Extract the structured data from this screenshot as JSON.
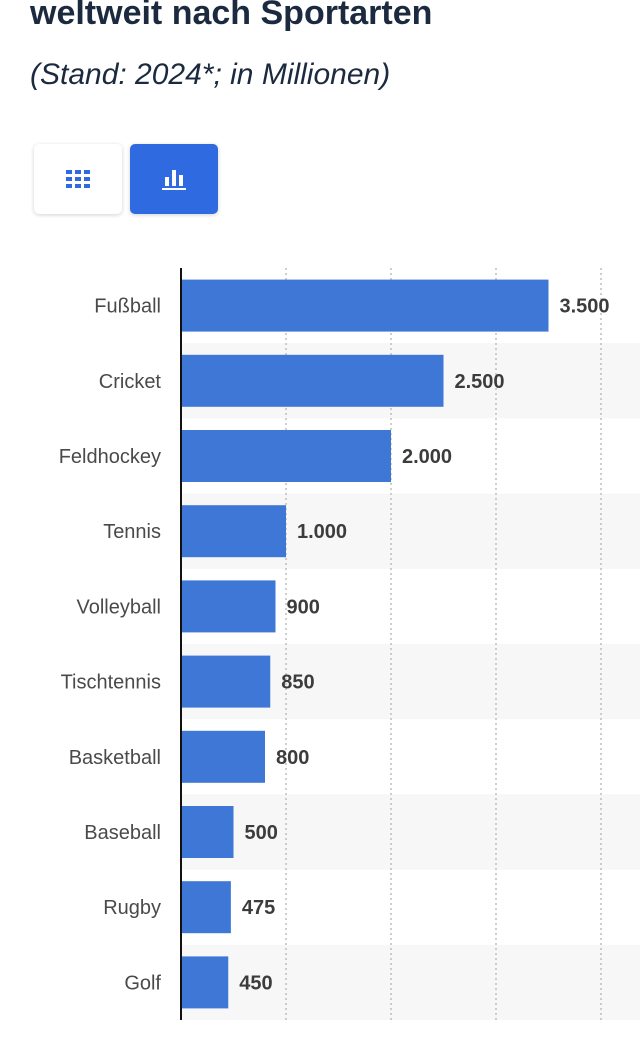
{
  "header": {
    "title": "weltweit nach Sportarten",
    "subtitle": "(Stand: 2024*; in Millionen)"
  },
  "view_toggle": {
    "table_icon": "grid-icon",
    "chart_icon": "bar-chart-icon",
    "active": "chart",
    "active_color": "#2f6ae0"
  },
  "chart_data": {
    "type": "bar",
    "orientation": "horizontal",
    "categories": [
      "Fußball",
      "Cricket",
      "Feldhockey",
      "Tennis",
      "Volleyball",
      "Tischtennis",
      "Basketball",
      "Baseball",
      "Rugby",
      "Golf"
    ],
    "values": [
      3500,
      2500,
      2000,
      1000,
      900,
      850,
      800,
      500,
      475,
      450
    ],
    "value_labels": [
      "3.500",
      "2.500",
      "2.000",
      "1.000",
      "900",
      "850",
      "800",
      "500",
      "475",
      "450"
    ],
    "xlim": [
      0,
      4000
    ],
    "grid": true,
    "bar_color": "#3f77d6"
  }
}
